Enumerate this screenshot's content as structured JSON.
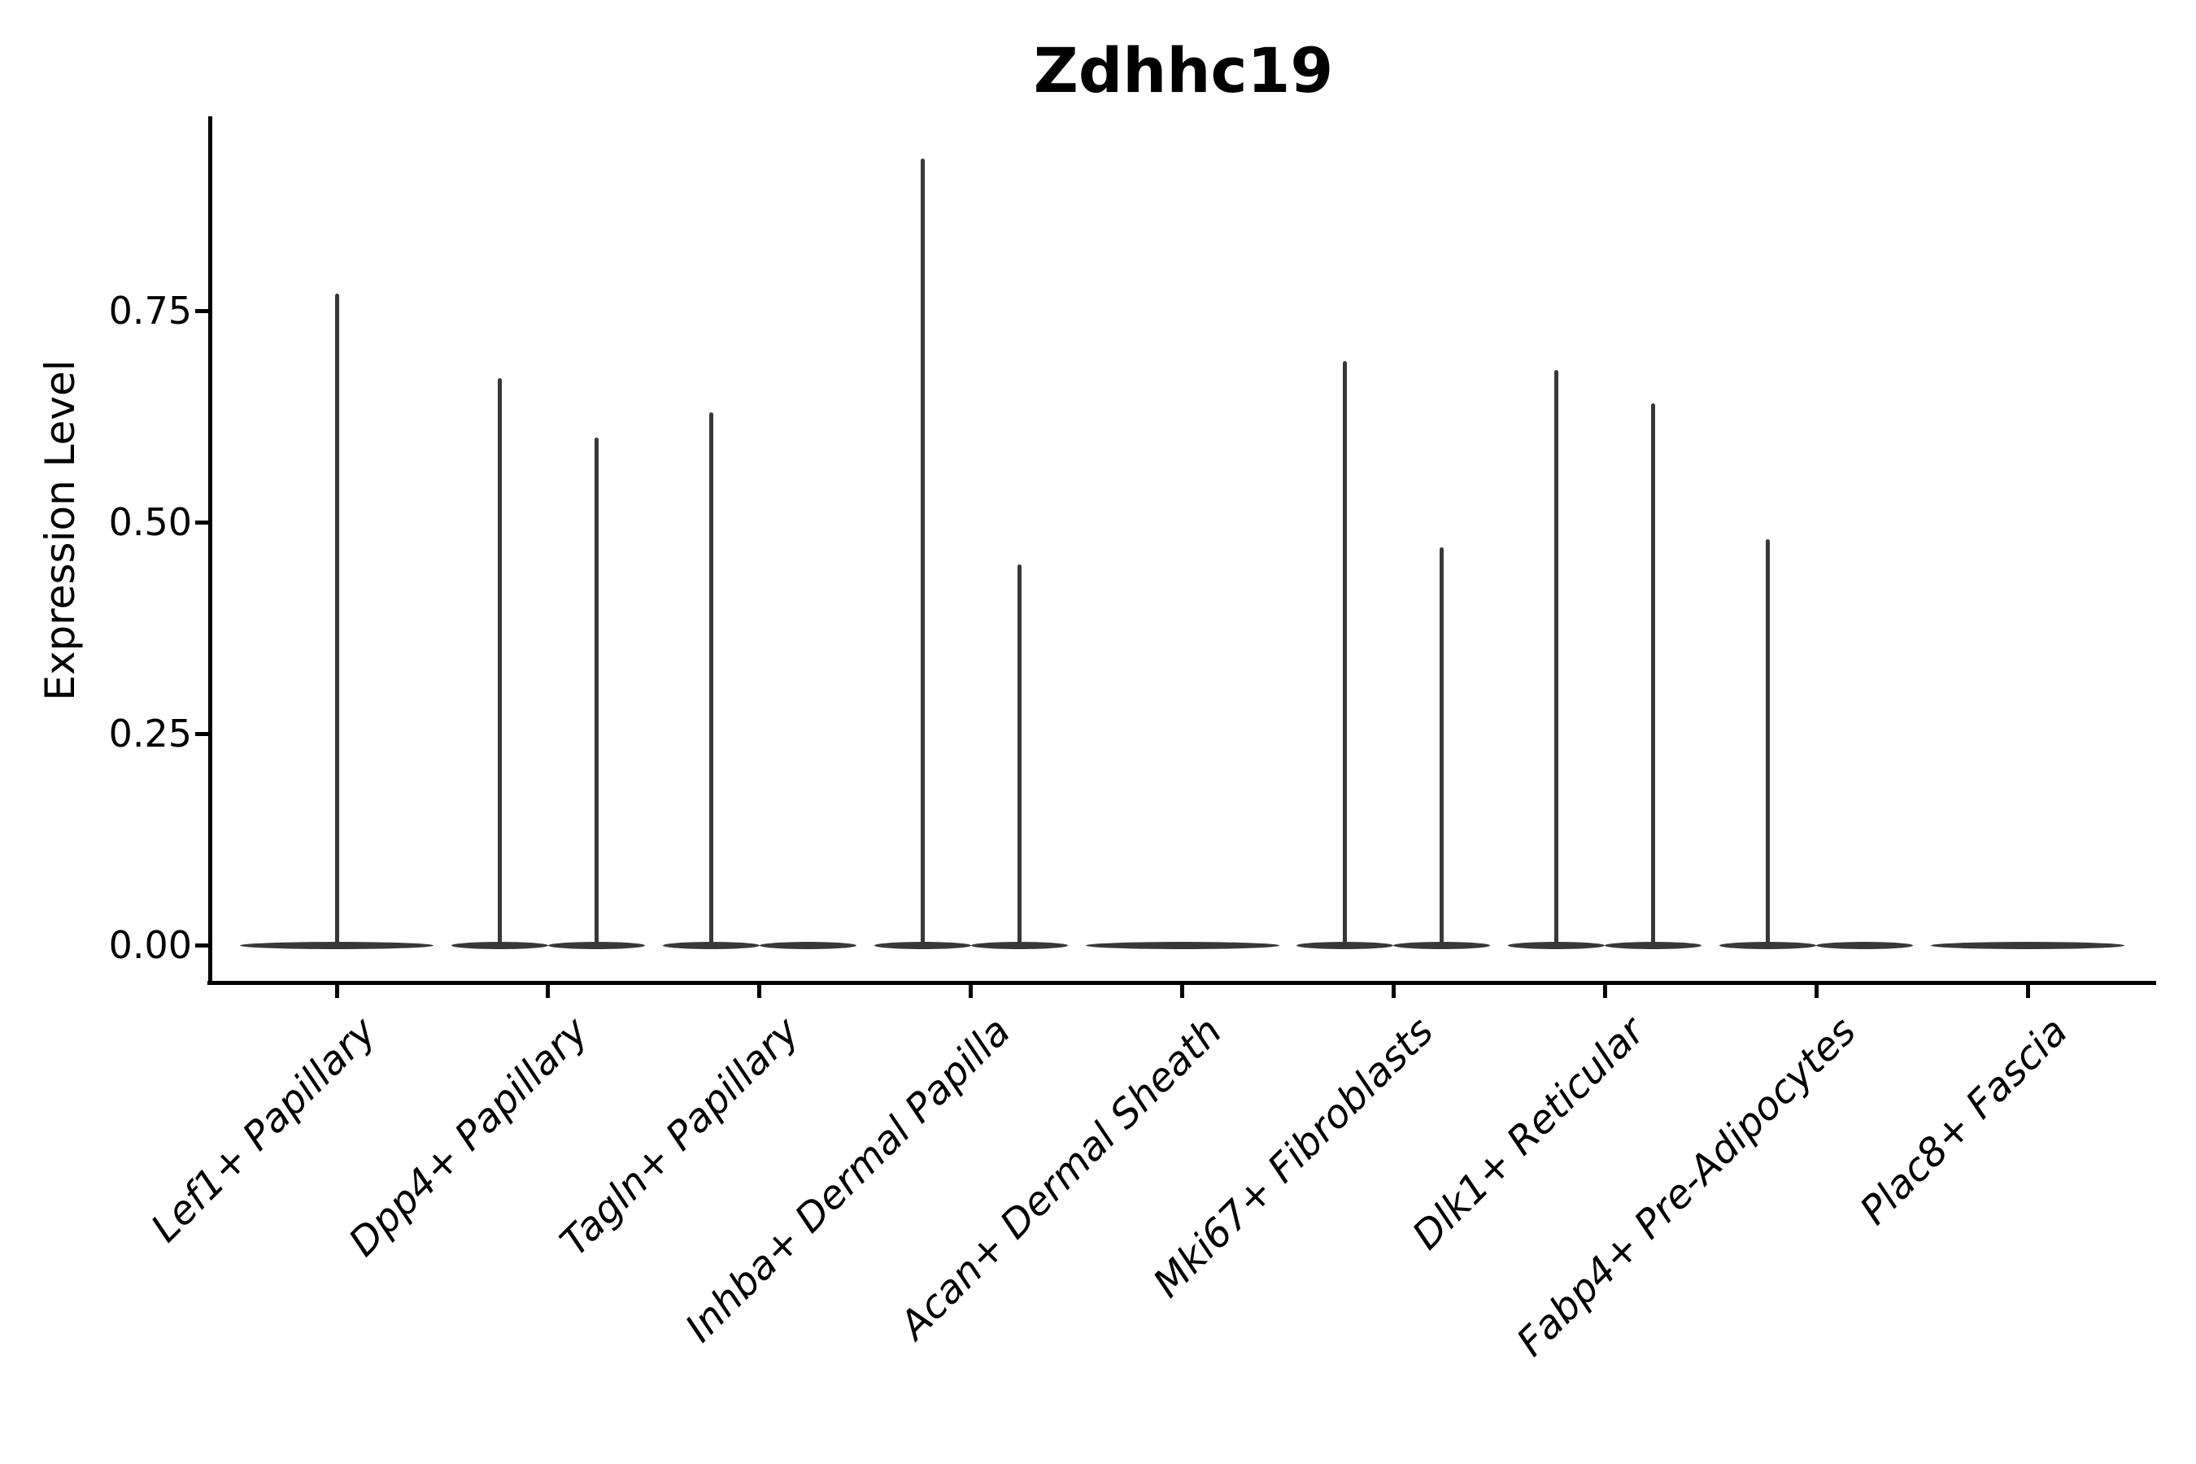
{
  "title": "Zdhhc19",
  "y_axis": {
    "label": "Expression Level"
  },
  "figure": {
    "background_color": "#ffffff",
    "axis_color": "#000000",
    "violin_color": "#383838"
  },
  "chart_data": {
    "type": "violin",
    "title": "Zdhhc19",
    "xlabel": "",
    "ylabel": "Expression Level",
    "ylim": [
      0,
      0.98
    ],
    "y_ticks": [
      0.0,
      0.25,
      0.5,
      0.75
    ],
    "grid": false,
    "legend": "none",
    "description": "Flat violins at 0 with thin density spikes; max expression value per violin. Categories with two entries contain two dodged sub-violins (left/right).",
    "categories": [
      {
        "label": "Lef1+ Papillary",
        "violins": [
          {
            "side": "center",
            "max": 0.77
          }
        ]
      },
      {
        "label": "Dpp4+ Papillary",
        "violins": [
          {
            "side": "left",
            "max": 0.67
          },
          {
            "side": "right",
            "max": 0.6
          }
        ]
      },
      {
        "label": "Tagln+ Papillary",
        "violins": [
          {
            "side": "left",
            "max": 0.63
          },
          {
            "side": "right",
            "max": 0
          }
        ]
      },
      {
        "label": "Inhba+ Dermal Papilla",
        "violins": [
          {
            "side": "left",
            "max": 0.93
          },
          {
            "side": "right",
            "max": 0.45
          }
        ]
      },
      {
        "label": "Acan+ Dermal Sheath",
        "violins": [
          {
            "side": "center",
            "max": 0
          }
        ]
      },
      {
        "label": "Mki67+ Fibroblasts",
        "violins": [
          {
            "side": "left",
            "max": 0.69
          },
          {
            "side": "right",
            "max": 0.47
          }
        ]
      },
      {
        "label": "Dlk1+ Reticular",
        "violins": [
          {
            "side": "left",
            "max": 0.68
          },
          {
            "side": "right",
            "max": 0.64
          }
        ]
      },
      {
        "label": "Fabp4+ Pre-Adipocytes",
        "violins": [
          {
            "side": "left",
            "max": 0.48
          },
          {
            "side": "right",
            "max": 0
          }
        ]
      },
      {
        "label": "Plac8+ Fascia",
        "violins": [
          {
            "side": "center",
            "max": 0
          }
        ]
      }
    ]
  }
}
